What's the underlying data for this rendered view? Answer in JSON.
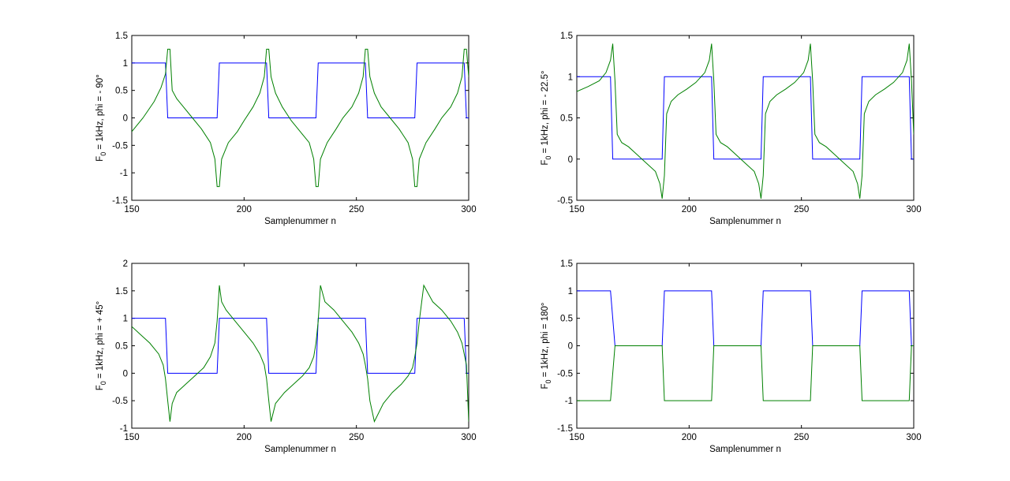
{
  "chart_data": [
    {
      "type": "line",
      "xlabel": "Samplenummer n",
      "ylabel": {
        "pre": "F",
        "sub": "0",
        "post": " = 1kHz, phi = - 90°"
      },
      "xlim": [
        150,
        300
      ],
      "ylim": [
        -1.5,
        1.5
      ],
      "xticks": [
        "150",
        "200",
        "250",
        "300"
      ],
      "yticks": [
        "-1.5",
        "-1",
        "-0.5",
        "0",
        "0.5",
        "1",
        "1.5"
      ],
      "grid": false,
      "series": [
        {
          "color": "#0000ff",
          "x": [
            150,
            165,
            166,
            188,
            189,
            210,
            211,
            232,
            233,
            254,
            255,
            276,
            277,
            298,
            299,
            300
          ],
          "y": [
            1,
            1,
            0,
            0,
            1,
            1,
            0,
            0,
            1,
            1,
            0,
            0,
            1,
            1,
            0,
            0
          ]
        },
        {
          "color": "#008000",
          "x": [
            150,
            155,
            160,
            163,
            165,
            166,
            167,
            168,
            170,
            173,
            177,
            181,
            185,
            187,
            188,
            189,
            190,
            193,
            197,
            200,
            204,
            207,
            209,
            210,
            211,
            212,
            214,
            217,
            221,
            225,
            229,
            231,
            232,
            233,
            234,
            237,
            241,
            244,
            248,
            251,
            253,
            254,
            255,
            256,
            258,
            261,
            265,
            269,
            273,
            275,
            276,
            277,
            278,
            281,
            285,
            288,
            292,
            295,
            297,
            298,
            299,
            300
          ],
          "y": [
            -0.25,
            0.0,
            0.3,
            0.55,
            0.8,
            1.25,
            1.25,
            0.5,
            0.35,
            0.2,
            0.0,
            -0.2,
            -0.45,
            -0.75,
            -1.25,
            -1.25,
            -0.75,
            -0.45,
            -0.25,
            -0.05,
            0.2,
            0.45,
            0.75,
            1.25,
            1.25,
            0.75,
            0.45,
            0.2,
            -0.05,
            -0.25,
            -0.45,
            -0.75,
            -1.25,
            -1.25,
            -0.75,
            -0.45,
            -0.2,
            0.0,
            0.2,
            0.45,
            0.75,
            1.25,
            1.25,
            0.75,
            0.45,
            0.2,
            0.0,
            -0.2,
            -0.45,
            -0.75,
            -1.25,
            -1.25,
            -0.75,
            -0.45,
            -0.2,
            0.0,
            0.2,
            0.45,
            0.75,
            1.25,
            1.25,
            0.75
          ]
        }
      ]
    },
    {
      "type": "line",
      "xlabel": "Samplenummer n",
      "ylabel": {
        "pre": "F",
        "sub": "0",
        "post": " = 1kHz, phi = - 22.5°"
      },
      "xlim": [
        150,
        300
      ],
      "ylim": [
        -0.5,
        1.5
      ],
      "xticks": [
        "150",
        "200",
        "250",
        "300"
      ],
      "yticks": [
        "-0.5",
        "0",
        "0.5",
        "1",
        "1.5"
      ],
      "grid": false,
      "series": [
        {
          "color": "#0000ff",
          "x": [
            150,
            165,
            166,
            188,
            189,
            210,
            211,
            232,
            233,
            254,
            255,
            276,
            277,
            298,
            299,
            300
          ],
          "y": [
            1,
            1,
            0,
            0,
            1,
            1,
            0,
            0,
            1,
            1,
            0,
            0,
            1,
            1,
            0,
            0
          ]
        },
        {
          "color": "#008000",
          "x": [
            150,
            155,
            160,
            163,
            165,
            166,
            167,
            168,
            170,
            173,
            177,
            181,
            185,
            187,
            188,
            189,
            190,
            192,
            195,
            199,
            203,
            207,
            209,
            210,
            211,
            212,
            214,
            217,
            221,
            225,
            229,
            231,
            232,
            233,
            234,
            236,
            239,
            243,
            247,
            251,
            253,
            254,
            255,
            256,
            258,
            261,
            265,
            269,
            273,
            275,
            276,
            277,
            278,
            280,
            283,
            287,
            291,
            295,
            297,
            298,
            299,
            300
          ],
          "y": [
            0.82,
            0.88,
            0.95,
            1.05,
            1.2,
            1.4,
            0.95,
            0.3,
            0.2,
            0.15,
            0.05,
            -0.05,
            -0.15,
            -0.3,
            -0.48,
            -0.2,
            0.55,
            0.7,
            0.78,
            0.85,
            0.93,
            1.05,
            1.2,
            1.4,
            0.95,
            0.3,
            0.2,
            0.15,
            0.05,
            -0.05,
            -0.15,
            -0.3,
            -0.48,
            -0.2,
            0.55,
            0.7,
            0.78,
            0.85,
            0.93,
            1.05,
            1.2,
            1.4,
            0.95,
            0.3,
            0.2,
            0.15,
            0.05,
            -0.05,
            -0.15,
            -0.3,
            -0.48,
            -0.2,
            0.55,
            0.7,
            0.78,
            0.85,
            0.93,
            1.05,
            1.2,
            1.4,
            0.95,
            0.3
          ]
        }
      ]
    },
    {
      "type": "line",
      "xlabel": "Samplenummer n",
      "ylabel": {
        "pre": "F",
        "sub": "0",
        "post": " = 1kHz, phi = + 45°"
      },
      "xlim": [
        150,
        300
      ],
      "ylim": [
        -1,
        2
      ],
      "xticks": [
        "150",
        "200",
        "250",
        "300"
      ],
      "yticks": [
        "-1",
        "-0.5",
        "0",
        "0.5",
        "1",
        "1.5",
        "2"
      ],
      "grid": false,
      "series": [
        {
          "color": "#0000ff",
          "x": [
            150,
            165,
            166,
            188,
            189,
            210,
            211,
            232,
            233,
            254,
            255,
            276,
            277,
            298,
            299,
            300
          ],
          "y": [
            1,
            1,
            0,
            0,
            1,
            1,
            0,
            0,
            1,
            1,
            0,
            0,
            1,
            1,
            0,
            0
          ]
        },
        {
          "color": "#008000",
          "x": [
            150,
            154,
            158,
            162,
            164,
            165,
            166,
            167,
            168,
            170,
            174,
            178,
            182,
            185,
            187,
            188,
            189,
            190,
            192,
            196,
            200,
            204,
            207,
            209,
            210,
            211,
            212,
            214,
            218,
            222,
            226,
            229,
            231,
            232,
            233,
            234,
            236,
            240,
            244,
            248,
            251,
            253,
            254,
            255,
            256,
            258,
            262,
            266,
            270,
            273,
            275,
            276,
            277,
            278,
            280,
            284,
            288,
            292,
            295,
            297,
            298,
            299,
            300
          ],
          "y": [
            0.85,
            0.7,
            0.55,
            0.35,
            0.15,
            -0.1,
            -0.5,
            -0.88,
            -0.55,
            -0.35,
            -0.2,
            -0.05,
            0.1,
            0.3,
            0.55,
            0.95,
            1.6,
            1.3,
            1.15,
            0.95,
            0.75,
            0.55,
            0.35,
            0.15,
            -0.1,
            -0.5,
            -0.88,
            -0.55,
            -0.35,
            -0.2,
            -0.05,
            0.1,
            0.3,
            0.55,
            0.95,
            1.6,
            1.3,
            1.15,
            0.95,
            0.75,
            0.55,
            0.35,
            0.15,
            -0.1,
            -0.5,
            -0.88,
            -0.55,
            -0.35,
            -0.2,
            -0.05,
            0.1,
            0.3,
            0.55,
            0.95,
            1.6,
            1.3,
            1.15,
            0.95,
            0.75,
            0.55,
            0.35,
            0.15,
            -0.88
          ]
        }
      ]
    },
    {
      "type": "line",
      "xlabel": "Samplenummer n",
      "ylabel": {
        "pre": "F",
        "sub": "0",
        "post": " = 1kHz, phi = 180°"
      },
      "xlim": [
        150,
        300
      ],
      "ylim": [
        -1.5,
        1.5
      ],
      "xticks": [
        "150",
        "200",
        "250",
        "300"
      ],
      "yticks": [
        "-1.5",
        "-1",
        "-0.5",
        "0",
        "0.5",
        "1",
        "1.5"
      ],
      "grid": false,
      "series": [
        {
          "color": "#0000ff",
          "x": [
            150,
            165,
            167,
            188,
            189,
            210,
            211,
            232,
            233,
            254,
            255,
            276,
            277,
            298,
            299,
            300
          ],
          "y": [
            1,
            1,
            0,
            0,
            1,
            1,
            0,
            0,
            1,
            1,
            0,
            0,
            1,
            1,
            0,
            0
          ]
        },
        {
          "color": "#008000",
          "x": [
            150,
            165,
            167,
            188,
            189,
            210,
            211,
            232,
            233,
            254,
            255,
            276,
            277,
            298,
            299,
            300
          ],
          "y": [
            -1,
            -1,
            0,
            0,
            -1,
            -1,
            0,
            0,
            -1,
            -1,
            0,
            0,
            -1,
            -1,
            0,
            0
          ]
        }
      ]
    }
  ]
}
